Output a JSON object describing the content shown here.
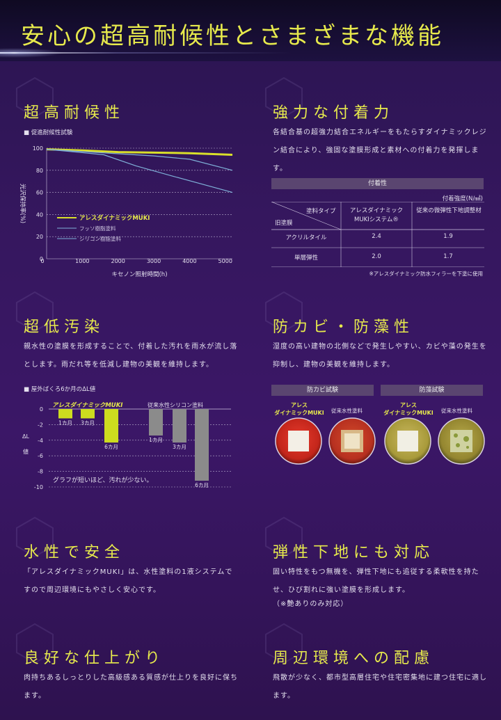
{
  "title": "安心の超高耐候性とさまざまな機能",
  "sections": {
    "weather": {
      "heading": "超高耐候性",
      "chart_label": "■ 促進耐候性試験",
      "legend": [
        "アレスダイナミックMUKI",
        "フッソ樹脂塗料",
        "シリコン樹脂塗料"
      ]
    },
    "adhesion": {
      "heading": "強力な付着力",
      "text": "各結合基の超強力結合エネルギーをもたらすダイナミックレジン結合により、強固な塗膜形成と素材への付着力を発揮します。",
      "table_title": "付着性",
      "unit": "付着強度(N/㎟)",
      "head_type": "塗料タイプ",
      "head_old": "旧塗膜",
      "col1": "アレスダイナミックMUKIシステム®",
      "col2": "従来の微弾性下地調整材",
      "rows": [
        {
          "name": "アクリルタイル",
          "a": "2.4",
          "b": "1.9"
        },
        {
          "name": "単層弾性",
          "a": "2.0",
          "b": "1.7"
        }
      ],
      "note": "※アレスダイナミック防水フィラーを下塗に使用"
    },
    "stain": {
      "heading": "超低汚染",
      "text": "親水性の塗膜を形成することで、付着した汚れを雨水が流し落とします。雨だれ等を低減し建物の美観を維持します。",
      "chart_label": "■ 屋外ばくろ6か月のΔL値",
      "group1": "アレスダイナミックMUKI",
      "group2": "従来水性シリコン塗料",
      "caption": "グラフが短いほど、汚れが少ない。"
    },
    "mold": {
      "heading": "防カビ・防藻性",
      "text": "湿度の高い建物の北側などで発生しやすい、カビや藻の発生を抑制し、建物の美観を維持します。",
      "test1": "防カビ試験",
      "test2": "防藻試験",
      "muki_label_1": "アレス",
      "muki_label_2": "ダイナミックMUKI",
      "conv_label": "従来水性塗料"
    },
    "safe": {
      "heading": "水性で安全",
      "text": "「アレスダイナミックMUKI」は、水性塗料の1液システムですので周辺環境にもやさしく安心です。"
    },
    "elastic": {
      "heading": "弾性下地にも対応",
      "text": "固い特性をもつ無機を、弾性下地にも追従する柔軟性を持たせ、ひび割れに強い塗膜を形成します。",
      "note": "（※艶ありのみ対応）"
    },
    "finish": {
      "heading": "良好な仕上がり",
      "text": "肉持ちあるしっとりした高級感ある質感が仕上りを良好に保ちます。"
    },
    "env": {
      "heading": "周辺環境への配慮",
      "text": "飛散が少なく、都市型高層住宅や住宅密集地に建つ住宅に適します。"
    }
  },
  "chart_data": [
    {
      "type": "line",
      "x": [
        0,
        1000,
        2000,
        3000,
        4000,
        5000
      ],
      "xlim": [
        0,
        5200
      ],
      "ylim": [
        0,
        100
      ],
      "xlabel": "キセノン照射時間(h)",
      "ylabel": "光沢保持率(%)",
      "yticks": [
        0,
        20,
        40,
        60,
        80,
        100
      ],
      "xticks": [
        0,
        1000,
        2000,
        3000,
        4000,
        5000
      ],
      "series": [
        {
          "name": "アレスダイナミックMUKI",
          "color": "#d9e02a",
          "points": [
            [
              0,
              99
            ],
            [
              1000,
              98
            ],
            [
              2000,
              96.5
            ],
            [
              3000,
              96
            ],
            [
              4000,
              95.5
            ],
            [
              5200,
              94
            ]
          ]
        },
        {
          "name": "フッソ樹脂塗料",
          "color": "#7fb0d8",
          "points": [
            [
              0,
              99
            ],
            [
              1000,
              97
            ],
            [
              2000,
              95
            ],
            [
              3000,
              93
            ],
            [
              4000,
              90
            ],
            [
              5200,
              80
            ]
          ]
        },
        {
          "name": "シリコン樹脂塗料",
          "color": "#7fb0d8",
          "points": [
            [
              0,
              99
            ],
            [
              1000,
              96
            ],
            [
              1600,
              94
            ],
            [
              2500,
              84
            ],
            [
              3500,
              75
            ],
            [
              5200,
              60
            ]
          ]
        }
      ],
      "grid": true
    },
    {
      "type": "bar",
      "ylim": [
        -10,
        0
      ],
      "yticks": [
        0,
        -2,
        -4,
        -6,
        -8,
        -10
      ],
      "ylabel": "ΔL値",
      "series": [
        {
          "name": "アレスダイナミックMUKI",
          "color": "#cddc1f",
          "categories": [
            "1カ月",
            "3カ月",
            "6カ月"
          ],
          "values": [
            -1.2,
            -1.2,
            -4.3
          ]
        },
        {
          "name": "従来水性シリコン塗料",
          "color": "#8b8b8b",
          "categories": [
            "1カ月",
            "3カ月",
            "6カ月"
          ],
          "values": [
            -3.4,
            -4.3,
            -9.2
          ]
        }
      ]
    }
  ]
}
